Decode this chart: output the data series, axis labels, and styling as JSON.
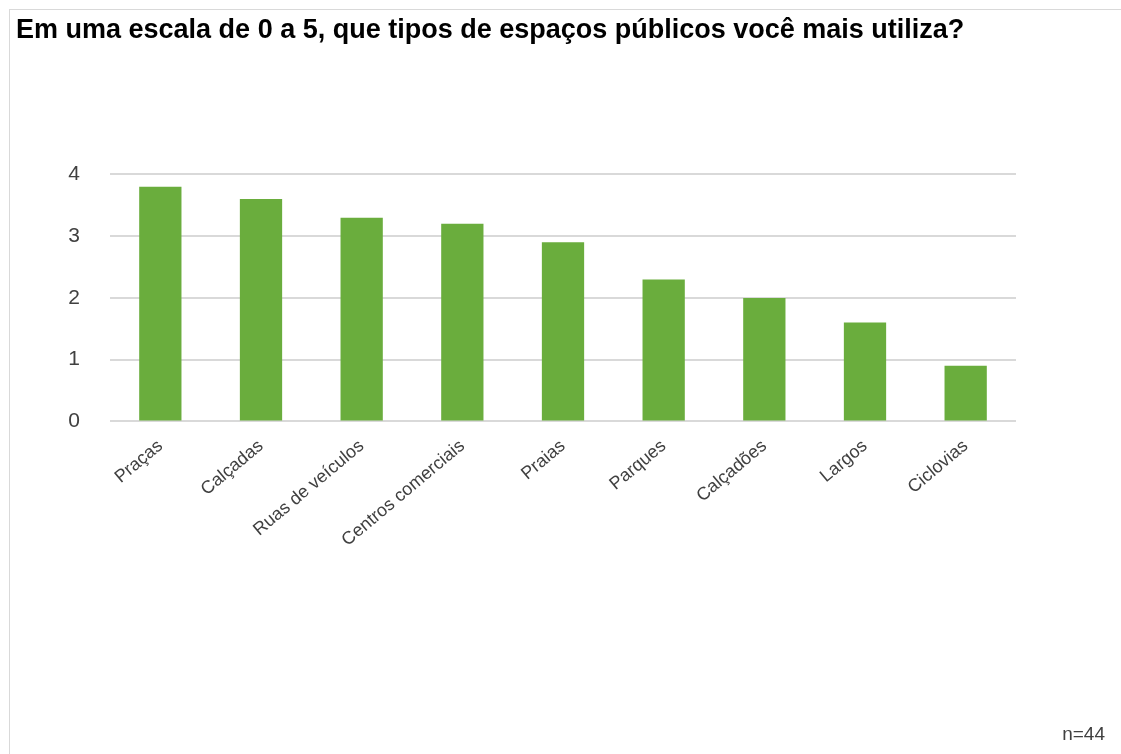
{
  "chart_data": {
    "type": "bar",
    "title": "Em uma escala de 0 a 5, que tipos de espaços públicos você mais utiliza?",
    "categories": [
      "Praças",
      "Calçadas",
      "Ruas de veículos",
      "Centros comerciais",
      "Praias",
      "Parques",
      "Calçadões",
      "Largos",
      "Ciclovias"
    ],
    "values": [
      3.8,
      3.6,
      3.3,
      3.2,
      2.9,
      2.3,
      2.0,
      1.6,
      0.9
    ],
    "color": "#6aad3d",
    "ylim": [
      0,
      4
    ],
    "yticks": [
      0,
      1,
      2,
      3,
      4
    ],
    "grid": "y",
    "annotations": [
      "n=44"
    ]
  }
}
